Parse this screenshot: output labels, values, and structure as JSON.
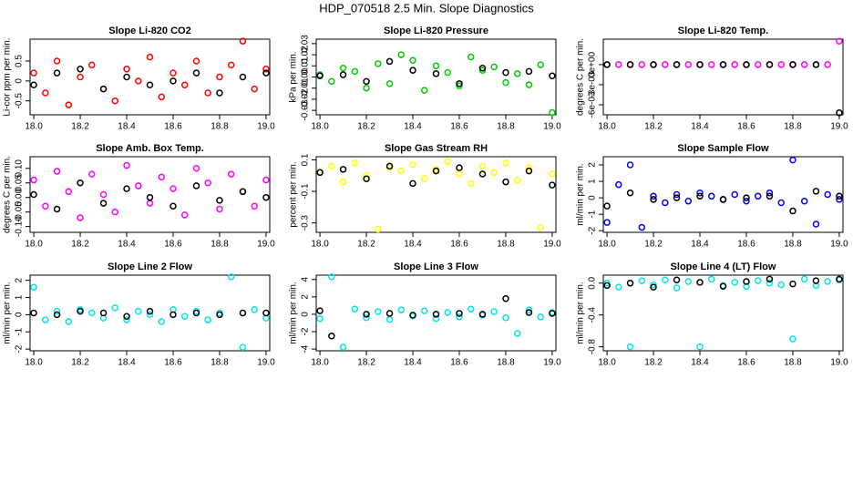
{
  "title": "HDP_070518  2.5 Min. Slope Diagnostics",
  "chart_data": [
    {
      "type": "scatter",
      "title": "Slope Li-820 CO2",
      "ylabel": "Li-cor ppm per min.",
      "x": [
        18.0,
        18.05,
        18.1,
        18.15,
        18.2,
        18.25,
        18.3,
        18.35,
        18.4,
        18.45,
        18.5,
        18.55,
        18.6,
        18.65,
        18.7,
        18.75,
        18.8,
        18.85,
        18.9,
        18.95,
        19.0
      ],
      "xlim": [
        17.984,
        19.016
      ],
      "xticks": [
        {
          "value": 18.0,
          "label": "18.0"
        },
        18.2,
        18.4,
        18.6,
        18.8,
        {
          "value": 19.0,
          "label": "19.0"
        }
      ],
      "ylim": [
        -0.85,
        1.05
      ],
      "yticks": [
        {
          "value": -0.5,
          "label": "-0.5"
        },
        0,
        0.5
      ],
      "series": [
        {
          "color": "#ff0000",
          "values": [
            0.2,
            -0.3,
            0.5,
            -0.6,
            0.1,
            0.4,
            -0.2,
            -0.5,
            0.3,
            0.0,
            0.6,
            -0.4,
            0.2,
            -0.1,
            0.5,
            -0.3,
            0.1,
            0.4,
            1.0,
            -0.2,
            0.3
          ]
        },
        {
          "color": "#000000",
          "values": [
            -0.1,
            null,
            0.2,
            null,
            0.3,
            null,
            -0.2,
            null,
            0.1,
            null,
            -0.1,
            null,
            0.0,
            null,
            0.2,
            null,
            -0.3,
            null,
            0.1,
            null,
            0.2
          ]
        }
      ]
    },
    {
      "type": "scatter",
      "title": "Slope Li-820 Pressure",
      "ylabel": "kPa per min.",
      "x": [
        18.0,
        18.05,
        18.1,
        18.15,
        18.2,
        18.25,
        18.3,
        18.35,
        18.4,
        18.45,
        18.5,
        18.55,
        18.6,
        18.65,
        18.7,
        18.75,
        18.8,
        18.85,
        18.9,
        18.95,
        19.0
      ],
      "xlim": [
        17.984,
        19.016
      ],
      "xticks": [
        {
          "value": 18.0,
          "label": "18.0"
        },
        18.2,
        18.4,
        18.6,
        18.8,
        {
          "value": 19.0,
          "label": "19.0"
        }
      ],
      "ylim": [
        -0.034,
        0.034
      ],
      "yticks": [
        -0.03,
        -0.02,
        -0.01,
        {
          "value": 0,
          "label": "0.00"
        },
        0.01,
        0.02,
        0.03
      ],
      "series": [
        {
          "color": "#00cc00",
          "values": [
            0.002,
            -0.004,
            0.008,
            0.005,
            -0.01,
            0.012,
            -0.006,
            0.02,
            0.015,
            -0.012,
            0.01,
            0.004,
            -0.008,
            0.018,
            0.006,
            0.009,
            -0.005,
            0.003,
            -0.007,
            0.011,
            -0.032
          ]
        },
        {
          "color": "#000000",
          "values": [
            0.001,
            null,
            0.002,
            null,
            -0.004,
            null,
            0.014,
            null,
            0.006,
            null,
            0.003,
            null,
            -0.006,
            null,
            0.008,
            null,
            0.004,
            null,
            0.005,
            null,
            0.001
          ]
        }
      ]
    },
    {
      "type": "scatter",
      "title": "Slope Li-820 Temp.",
      "ylabel": "degrees C per min.",
      "x": [
        18.0,
        18.05,
        18.1,
        18.15,
        18.2,
        18.25,
        18.3,
        18.35,
        18.4,
        18.45,
        18.5,
        18.55,
        18.6,
        18.65,
        18.7,
        18.75,
        18.8,
        18.85,
        18.9,
        18.95,
        19.0
      ],
      "xlim": [
        17.984,
        19.016
      ],
      "xticks": [
        {
          "value": 18.0,
          "label": "18.0"
        },
        18.2,
        18.4,
        18.6,
        18.8,
        {
          "value": 19.0,
          "label": "19.0"
        }
      ],
      "ylim": [
        -0.0075,
        0.0038
      ],
      "yticks": [
        {
          "value": -0.006,
          "label": "-6e-03"
        },
        {
          "value": -0.003,
          "label": "-3e-03"
        },
        {
          "value": 0,
          "label": "0e+00"
        }
      ],
      "series": [
        {
          "color": "#ff00ff",
          "values": [
            0,
            0,
            0,
            0,
            0,
            0,
            0,
            0,
            0,
            0,
            0,
            0,
            0,
            0,
            0,
            0,
            0,
            0,
            0,
            0,
            0.0035
          ]
        },
        {
          "color": "#000000",
          "values": [
            0,
            null,
            0,
            null,
            0,
            null,
            0,
            null,
            0,
            null,
            0,
            null,
            0,
            null,
            0,
            null,
            0,
            null,
            0,
            null,
            -0.0072
          ]
        }
      ]
    },
    {
      "type": "scatter",
      "title": "Slope Amb. Box Temp.",
      "ylabel": "degrees C per min.",
      "x": [
        18.0,
        18.05,
        18.1,
        18.15,
        18.2,
        18.25,
        18.3,
        18.35,
        18.4,
        18.45,
        18.5,
        18.55,
        18.6,
        18.65,
        18.7,
        18.75,
        18.8,
        18.85,
        18.9,
        18.95,
        19.0
      ],
      "xlim": [
        17.984,
        19.016
      ],
      "xticks": [
        {
          "value": 18.0,
          "label": "18.0"
        },
        18.2,
        18.4,
        18.6,
        18.8,
        {
          "value": 19.0,
          "label": "19.0"
        }
      ],
      "ylim": [
        -0.12,
        0.14
      ],
      "yticks": [
        {
          "value": -0.1,
          "label": "-0.10"
        },
        -0.05,
        {
          "value": 0,
          "label": "0.00"
        },
        0.05,
        {
          "value": 0.1,
          "label": "0.10"
        }
      ],
      "series": [
        {
          "color": "#ff00ff",
          "values": [
            0.06,
            -0.03,
            0.09,
            0.02,
            -0.07,
            0.08,
            0.01,
            -0.05,
            0.11,
            0.04,
            -0.02,
            0.07,
            0.03,
            -0.06,
            0.1,
            0.05,
            -0.04,
            0.08,
            0.02,
            -0.03,
            0.06
          ]
        },
        {
          "color": "#000000",
          "values": [
            0.01,
            null,
            -0.04,
            null,
            0.05,
            null,
            -0.02,
            null,
            0.03,
            null,
            0.0,
            null,
            -0.03,
            null,
            0.04,
            null,
            -0.01,
            null,
            0.02,
            null,
            0.0
          ]
        }
      ]
    },
    {
      "type": "scatter",
      "title": "Slope Gas Stream RH",
      "ylabel": "percent per min.",
      "x": [
        18.0,
        18.05,
        18.1,
        18.15,
        18.2,
        18.25,
        18.3,
        18.35,
        18.4,
        18.45,
        18.5,
        18.55,
        18.6,
        18.65,
        18.7,
        18.75,
        18.8,
        18.85,
        18.9,
        18.95,
        19.0
      ],
      "xlim": [
        17.984,
        19.016
      ],
      "xticks": [
        {
          "value": 18.0,
          "label": "18.0"
        },
        18.2,
        18.4,
        18.6,
        18.8,
        {
          "value": 19.0,
          "label": "19.0"
        }
      ],
      "ylim": [
        -0.36,
        0.12
      ],
      "yticks": [
        -0.3,
        -0.1,
        0.1
      ],
      "series": [
        {
          "color": "#ffff00",
          "values": [
            0.02,
            0.06,
            -0.04,
            0.08,
            0.0,
            -0.34,
            0.05,
            0.03,
            0.07,
            -0.02,
            0.04,
            0.09,
            0.01,
            -0.05,
            0.06,
            0.02,
            0.08,
            -0.03,
            0.05,
            -0.33,
            0.01
          ]
        },
        {
          "color": "#000000",
          "values": [
            0.02,
            null,
            0.04,
            null,
            -0.02,
            null,
            0.06,
            null,
            -0.05,
            null,
            0.03,
            null,
            0.05,
            null,
            0.01,
            null,
            -0.04,
            null,
            0.03,
            null,
            -0.06
          ]
        }
      ]
    },
    {
      "type": "scatter",
      "title": "Slope Sample Flow",
      "ylabel": "ml/min per min.",
      "x": [
        18.0,
        18.05,
        18.1,
        18.15,
        18.2,
        18.25,
        18.3,
        18.35,
        18.4,
        18.45,
        18.5,
        18.55,
        18.6,
        18.65,
        18.7,
        18.75,
        18.8,
        18.85,
        18.9,
        18.95,
        19.0
      ],
      "xlim": [
        17.984,
        19.016
      ],
      "xticks": [
        {
          "value": 18.0,
          "label": "18.0"
        },
        18.2,
        18.4,
        18.6,
        18.8,
        {
          "value": 19.0,
          "label": "19.0"
        }
      ],
      "ylim": [
        -2.1,
        2.5
      ],
      "yticks": [
        -2,
        -1,
        0,
        1,
        2
      ],
      "series": [
        {
          "color": "#0000ff",
          "values": [
            -1.5,
            0.8,
            2.0,
            -1.8,
            0.1,
            -0.3,
            0.2,
            -0.2,
            0.3,
            0.1,
            -0.1,
            0.2,
            -0.2,
            0.1,
            0.3,
            -0.3,
            2.3,
            -0.2,
            -1.6,
            0.2,
            -0.1
          ]
        },
        {
          "color": "#000000",
          "values": [
            -0.5,
            null,
            0.3,
            null,
            -0.1,
            null,
            0.0,
            null,
            0.1,
            null,
            -0.1,
            null,
            0.0,
            null,
            0.1,
            null,
            -0.8,
            null,
            0.4,
            null,
            0.1
          ]
        }
      ]
    },
    {
      "type": "scatter",
      "title": "Slope Line 2 Flow",
      "ylabel": "ml/min per min.",
      "x": [
        18.0,
        18.05,
        18.1,
        18.15,
        18.2,
        18.25,
        18.3,
        18.35,
        18.4,
        18.45,
        18.5,
        18.55,
        18.6,
        18.65,
        18.7,
        18.75,
        18.8,
        18.85,
        18.9,
        18.95,
        19.0
      ],
      "xlim": [
        17.984,
        19.016
      ],
      "xticks": [
        {
          "value": 18.0,
          "label": "18.0"
        },
        18.2,
        18.4,
        18.6,
        18.8,
        {
          "value": 19.0,
          "label": "19.0"
        }
      ],
      "ylim": [
        -2.1,
        2.3
      ],
      "yticks": [
        -2,
        -1,
        0,
        1,
        2
      ],
      "series": [
        {
          "color": "#00e5ee",
          "values": [
            1.6,
            -0.3,
            0.2,
            -0.4,
            0.3,
            0.1,
            -0.2,
            0.4,
            -0.3,
            0.2,
            0.0,
            -0.4,
            0.3,
            -0.1,
            0.2,
            -0.3,
            0.1,
            2.2,
            -1.9,
            0.3,
            -0.2
          ]
        },
        {
          "color": "#000000",
          "values": [
            0.1,
            null,
            0.0,
            null,
            0.2,
            null,
            0.1,
            null,
            -0.1,
            null,
            0.2,
            null,
            0.0,
            null,
            0.1,
            null,
            0.0,
            null,
            0.1,
            null,
            0.1
          ]
        }
      ]
    },
    {
      "type": "scatter",
      "title": "Slope Line 3 Flow",
      "ylabel": "ml/min per min.",
      "x": [
        18.0,
        18.05,
        18.1,
        18.15,
        18.2,
        18.25,
        18.3,
        18.35,
        18.4,
        18.45,
        18.5,
        18.55,
        18.6,
        18.65,
        18.7,
        18.75,
        18.8,
        18.85,
        18.9,
        18.95,
        19.0
      ],
      "xlim": [
        17.984,
        19.016
      ],
      "xticks": [
        {
          "value": 18.0,
          "label": "18.0"
        },
        18.2,
        18.4,
        18.6,
        18.8,
        {
          "value": 19.0,
          "label": "19.0"
        }
      ],
      "ylim": [
        -4.2,
        4.5
      ],
      "yticks": [
        -4,
        -2,
        0,
        2,
        4
      ],
      "series": [
        {
          "color": "#00e5ee",
          "values": [
            -0.5,
            4.3,
            -3.8,
            0.6,
            -0.4,
            0.3,
            -0.6,
            0.5,
            -0.2,
            0.4,
            -0.5,
            0.2,
            -0.3,
            0.6,
            -0.1,
            0.3,
            -0.4,
            -2.2,
            0.5,
            -0.3,
            0.2
          ]
        },
        {
          "color": "#000000",
          "values": [
            0.4,
            -2.5,
            null,
            null,
            0.0,
            null,
            0.1,
            null,
            -0.1,
            null,
            0.0,
            null,
            0.1,
            null,
            0.0,
            null,
            1.8,
            null,
            0.2,
            null,
            0.1
          ]
        }
      ]
    },
    {
      "type": "scatter",
      "title": "Slope Line 4 (LT) Flow",
      "ylabel": "ml/min per min.",
      "x": [
        18.0,
        18.05,
        18.1,
        18.15,
        18.2,
        18.25,
        18.3,
        18.35,
        18.4,
        18.45,
        18.5,
        18.55,
        18.6,
        18.65,
        18.7,
        18.75,
        18.8,
        18.85,
        18.9,
        18.95,
        19.0
      ],
      "xlim": [
        17.984,
        19.016
      ],
      "xticks": [
        {
          "value": 18.0,
          "label": "18.0"
        },
        18.2,
        18.4,
        18.6,
        18.8,
        {
          "value": 19.0,
          "label": "19.0"
        }
      ],
      "ylim": [
        -0.85,
        0.1
      ],
      "yticks": [
        -0.8,
        -0.4,
        {
          "value": 0,
          "label": "0.0"
        }
      ],
      "series": [
        {
          "color": "#00e5ee",
          "values": [
            0.0,
            -0.05,
            -0.8,
            0.03,
            -0.02,
            0.04,
            -0.06,
            0.02,
            -0.8,
            0.05,
            -0.03,
            0.01,
            -0.04,
            0.03,
            0.0,
            -0.02,
            -0.7,
            0.05,
            -0.03,
            0.02,
            0.04
          ]
        },
        {
          "color": "#000000",
          "values": [
            -0.03,
            null,
            0.0,
            null,
            -0.05,
            null,
            0.04,
            null,
            0.01,
            null,
            -0.04,
            null,
            0.02,
            null,
            0.05,
            null,
            -0.01,
            null,
            0.03,
            null,
            0.05
          ]
        }
      ]
    }
  ]
}
